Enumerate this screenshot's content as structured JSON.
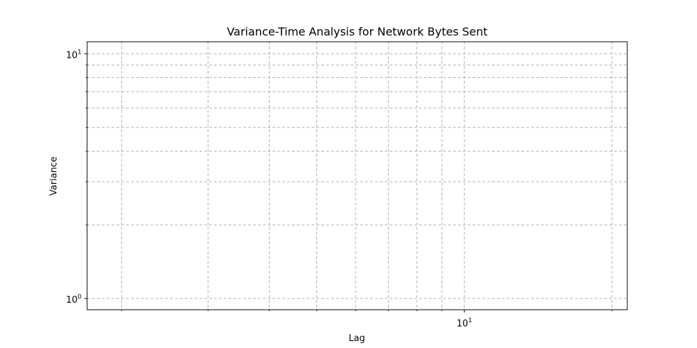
{
  "chart_data": {
    "type": "scatter",
    "title": "Variance-Time Analysis for Network Bytes Sent",
    "xlabel": "Lag",
    "ylabel": "Variance",
    "xscale": "log",
    "yscale": "log",
    "xlim": [
      1.7,
      21.5
    ],
    "ylim": [
      0.9,
      11.2
    ],
    "x_major_ticks": [
      {
        "value": 10,
        "base": "10",
        "exp": "1"
      }
    ],
    "x_minor_ticks": [
      2,
      3,
      4,
      5,
      6,
      7,
      8,
      9,
      20
    ],
    "y_major_ticks": [
      {
        "value": 1,
        "base": "10",
        "exp": "0"
      },
      {
        "value": 10,
        "base": "10",
        "exp": "1"
      }
    ],
    "y_minor_ticks": [
      2,
      3,
      4,
      5,
      6,
      7,
      8,
      9
    ],
    "grid": true,
    "series": []
  }
}
